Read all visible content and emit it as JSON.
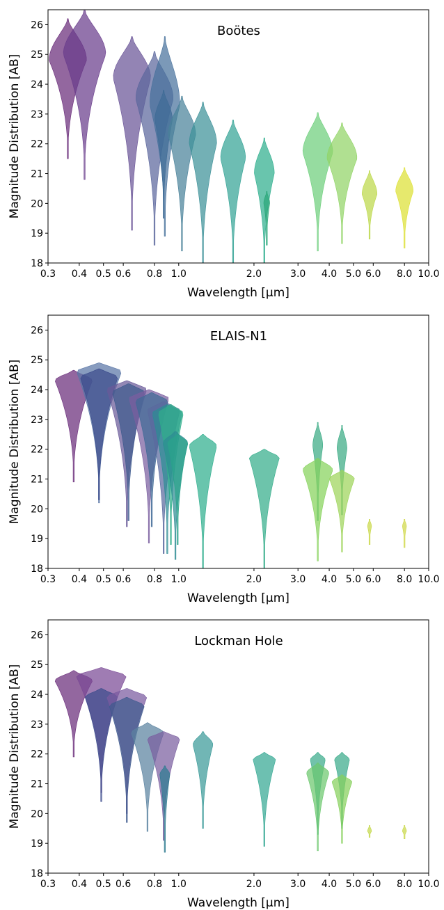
{
  "chart_data": [
    {
      "type": "violin",
      "title": "Boötes",
      "xlabel": "Wavelength [µm]",
      "ylabel": "Magnitude Distribution [AB]",
      "xscale": "log",
      "xlim": [
        0.3,
        10.0
      ],
      "ylim": [
        18,
        26.5
      ],
      "xticks": [
        0.3,
        0.4,
        0.5,
        0.6,
        0.8,
        1.0,
        2.0,
        3.0,
        4.0,
        5.0,
        6.0,
        8.0,
        10.0
      ],
      "xtick_labels": [
        "0.3",
        "0.4",
        "0.5",
        "0.6",
        "0.8",
        "1.0",
        "2.0",
        "3.0",
        "4.0",
        "5.0",
        "6.0",
        "8.0",
        "10.0"
      ],
      "yticks": [
        18,
        19,
        20,
        21,
        22,
        23,
        24,
        25,
        26
      ],
      "violins": [
        {
          "wl": 0.36,
          "top": 26.2,
          "bottom": 21.5,
          "peak": 24.8,
          "hw": 0.075,
          "color": "#6a2c7a"
        },
        {
          "wl": 0.42,
          "top": 26.5,
          "bottom": 20.8,
          "peak": 25.0,
          "hw": 0.085,
          "color": "#6a3d8c"
        },
        {
          "wl": 0.65,
          "top": 25.6,
          "bottom": 19.1,
          "peak": 24.2,
          "hw": 0.075,
          "color": "#6a5497"
        },
        {
          "wl": 0.8,
          "top": 25.1,
          "bottom": 18.6,
          "peak": 23.5,
          "hw": 0.075,
          "color": "#5c679d"
        },
        {
          "wl": 0.88,
          "top": 25.6,
          "bottom": 18.9,
          "peak": 23.3,
          "hw": 0.06,
          "color": "#48729c"
        },
        {
          "wl": 0.87,
          "top": 23.8,
          "bottom": 19.5,
          "peak": 22.8,
          "hw": 0.035,
          "color": "#3e6b95"
        },
        {
          "wl": 1.03,
          "top": 23.6,
          "bottom": 18.4,
          "peak": 22.3,
          "hw": 0.055,
          "color": "#4a829a"
        },
        {
          "wl": 1.25,
          "top": 23.4,
          "bottom": 17.9,
          "peak": 22.0,
          "hw": 0.055,
          "color": "#3d9199"
        },
        {
          "wl": 1.65,
          "top": 22.8,
          "bottom": 17.9,
          "peak": 21.5,
          "hw": 0.05,
          "color": "#35a396"
        },
        {
          "wl": 2.2,
          "top": 22.2,
          "bottom": 17.9,
          "peak": 21.0,
          "hw": 0.04,
          "color": "#2fae8e"
        },
        {
          "wl": 2.25,
          "top": 20.4,
          "bottom": 18.6,
          "peak": 20.0,
          "hw": 0.012,
          "color": "#2aa678"
        },
        {
          "wl": 3.6,
          "top": 23.05,
          "bottom": 18.4,
          "peak": 21.7,
          "hw": 0.06,
          "color": "#6ecf7c"
        },
        {
          "wl": 4.5,
          "top": 22.7,
          "bottom": 18.65,
          "peak": 21.5,
          "hw": 0.06,
          "color": "#92d466"
        },
        {
          "wl": 5.8,
          "top": 21.1,
          "bottom": 18.8,
          "peak": 20.3,
          "hw": 0.03,
          "color": "#bcd84a"
        },
        {
          "wl": 8.0,
          "top": 21.2,
          "bottom": 18.5,
          "peak": 20.4,
          "hw": 0.035,
          "color": "#dde034"
        }
      ]
    },
    {
      "type": "violin",
      "title": "ELAIS-N1",
      "xlabel": "Wavelength [µm]",
      "ylabel": "Magnitude Distribution [AB]",
      "xscale": "log",
      "xlim": [
        0.3,
        10.0
      ],
      "ylim": [
        18,
        26.5
      ],
      "xticks": [
        0.3,
        0.4,
        0.5,
        0.6,
        0.8,
        1.0,
        2.0,
        3.0,
        4.0,
        5.0,
        6.0,
        8.0,
        10.0
      ],
      "xtick_labels": [
        "0.3",
        "0.4",
        "0.5",
        "0.6",
        "0.8",
        "1.0",
        "2.0",
        "3.0",
        "4.0",
        "5.0",
        "6.0",
        "8.0",
        "10.0"
      ],
      "yticks": [
        18,
        19,
        20,
        21,
        22,
        23,
        24,
        25,
        26
      ],
      "violins": [
        {
          "wl": 0.38,
          "top": 24.65,
          "bottom": 20.9,
          "peak": 24.3,
          "hw": 0.075,
          "color": "#6a2c7a"
        },
        {
          "wl": 0.48,
          "top": 24.9,
          "bottom": 20.2,
          "peak": 24.6,
          "hw": 0.09,
          "color": "#5a76a6"
        },
        {
          "wl": 0.48,
          "top": 24.7,
          "bottom": 20.3,
          "peak": 24.4,
          "hw": 0.075,
          "color": "#3c4c8c"
        },
        {
          "wl": 0.62,
          "top": 24.3,
          "bottom": 19.4,
          "peak": 24.0,
          "hw": 0.08,
          "color": "#6a5a99"
        },
        {
          "wl": 0.63,
          "top": 24.2,
          "bottom": 19.6,
          "peak": 23.9,
          "hw": 0.065,
          "color": "#3e5a8e"
        },
        {
          "wl": 0.76,
          "top": 24.0,
          "bottom": 18.85,
          "peak": 23.7,
          "hw": 0.08,
          "color": "#7a5e9f"
        },
        {
          "wl": 0.78,
          "top": 23.9,
          "bottom": 19.4,
          "peak": 23.6,
          "hw": 0.065,
          "color": "#406a96"
        },
        {
          "wl": 0.87,
          "top": 23.6,
          "bottom": 18.5,
          "peak": 23.3,
          "hw": 0.065,
          "color": "#5a6a9e"
        },
        {
          "wl": 0.9,
          "top": 23.5,
          "bottom": 18.5,
          "peak": 23.2,
          "hw": 0.06,
          "color": "#2d8c94"
        },
        {
          "wl": 0.93,
          "top": 23.5,
          "bottom": 18.8,
          "peak": 23.2,
          "hw": 0.05,
          "color": "#2fae8a"
        },
        {
          "wl": 0.97,
          "top": 22.6,
          "bottom": 18.3,
          "peak": 22.2,
          "hw": 0.05,
          "color": "#2e8c93"
        },
        {
          "wl": 0.99,
          "top": 22.5,
          "bottom": 18.8,
          "peak": 22.2,
          "hw": 0.04,
          "color": "#2aa38a"
        },
        {
          "wl": 1.25,
          "top": 22.5,
          "bottom": 18.0,
          "peak": 22.1,
          "hw": 0.055,
          "color": "#2fae8e"
        },
        {
          "wl": 2.2,
          "top": 22.0,
          "bottom": 18.0,
          "peak": 21.7,
          "hw": 0.06,
          "color": "#35ad8a"
        },
        {
          "wl": 3.6,
          "top": 22.9,
          "bottom": 19.6,
          "peak": 22.1,
          "hw": 0.02,
          "color": "#3aaa84"
        },
        {
          "wl": 3.6,
          "top": 21.7,
          "bottom": 18.25,
          "peak": 21.3,
          "hw": 0.06,
          "color": "#86d25c"
        },
        {
          "wl": 4.5,
          "top": 22.8,
          "bottom": 19.8,
          "peak": 22.0,
          "hw": 0.02,
          "color": "#3aaa84"
        },
        {
          "wl": 4.5,
          "top": 21.3,
          "bottom": 18.55,
          "peak": 21.0,
          "hw": 0.05,
          "color": "#9ed45a"
        },
        {
          "wl": 5.8,
          "top": 19.65,
          "bottom": 18.8,
          "peak": 19.4,
          "hw": 0.008,
          "color": "#c9d848"
        },
        {
          "wl": 8.0,
          "top": 19.65,
          "bottom": 18.7,
          "peak": 19.4,
          "hw": 0.008,
          "color": "#d0d848"
        }
      ]
    },
    {
      "type": "violin",
      "title": "Lockman Hole",
      "xlabel": "Wavelength [µm]",
      "ylabel": "Magnitude Distribution [AB]",
      "xscale": "log",
      "xlim": [
        0.3,
        10.0
      ],
      "ylim": [
        18,
        26.5
      ],
      "xticks": [
        0.3,
        0.4,
        0.5,
        0.6,
        0.8,
        1.0,
        2.0,
        3.0,
        4.0,
        5.0,
        6.0,
        8.0,
        10.0
      ],
      "xtick_labels": [
        "0.3",
        "0.4",
        "0.5",
        "0.6",
        "0.8",
        "1.0",
        "2.0",
        "3.0",
        "4.0",
        "5.0",
        "6.0",
        "8.0",
        "10.0"
      ],
      "yticks": [
        18,
        19,
        20,
        21,
        22,
        23,
        24,
        25,
        26
      ],
      "violins": [
        {
          "wl": 0.38,
          "top": 24.8,
          "bottom": 21.9,
          "peak": 24.45,
          "hw": 0.075,
          "color": "#6a2c7a"
        },
        {
          "wl": 0.49,
          "top": 24.9,
          "bottom": 20.7,
          "peak": 24.6,
          "hw": 0.1,
          "color": "#7a4a95"
        },
        {
          "wl": 0.49,
          "top": 24.2,
          "bottom": 20.4,
          "peak": 23.9,
          "hw": 0.065,
          "color": "#3c4c8c"
        },
        {
          "wl": 0.62,
          "top": 24.2,
          "bottom": 20.0,
          "peak": 23.9,
          "hw": 0.08,
          "color": "#7a5a9f"
        },
        {
          "wl": 0.62,
          "top": 23.9,
          "bottom": 19.7,
          "peak": 23.6,
          "hw": 0.07,
          "color": "#3e5a8e"
        },
        {
          "wl": 0.75,
          "top": 23.05,
          "bottom": 19.4,
          "peak": 22.7,
          "hw": 0.065,
          "color": "#5a82a0"
        },
        {
          "wl": 0.87,
          "top": 22.75,
          "bottom": 19.1,
          "peak": 22.5,
          "hw": 0.065,
          "color": "#7a5e9f"
        },
        {
          "wl": 0.88,
          "top": 21.6,
          "bottom": 18.7,
          "peak": 21.3,
          "hw": 0.02,
          "color": "#2d7a90"
        },
        {
          "wl": 1.25,
          "top": 22.75,
          "bottom": 19.5,
          "peak": 22.3,
          "hw": 0.04,
          "color": "#3a9a98"
        },
        {
          "wl": 2.2,
          "top": 22.05,
          "bottom": 18.9,
          "peak": 21.8,
          "hw": 0.045,
          "color": "#35a893"
        },
        {
          "wl": 3.6,
          "top": 22.05,
          "bottom": 19.3,
          "peak": 21.8,
          "hw": 0.03,
          "color": "#3aab8a"
        },
        {
          "wl": 3.6,
          "top": 21.7,
          "bottom": 18.75,
          "peak": 21.35,
          "hw": 0.045,
          "color": "#6cc86e"
        },
        {
          "wl": 4.5,
          "top": 22.05,
          "bottom": 19.5,
          "peak": 21.8,
          "hw": 0.03,
          "color": "#3aab8a"
        },
        {
          "wl": 4.5,
          "top": 21.3,
          "bottom": 19.0,
          "peak": 21.05,
          "hw": 0.04,
          "color": "#86d05c"
        },
        {
          "wl": 5.8,
          "top": 19.6,
          "bottom": 19.2,
          "peak": 19.4,
          "hw": 0.008,
          "color": "#c4d84a"
        },
        {
          "wl": 8.0,
          "top": 19.6,
          "bottom": 19.15,
          "peak": 19.4,
          "hw": 0.008,
          "color": "#c9d848"
        }
      ]
    }
  ]
}
